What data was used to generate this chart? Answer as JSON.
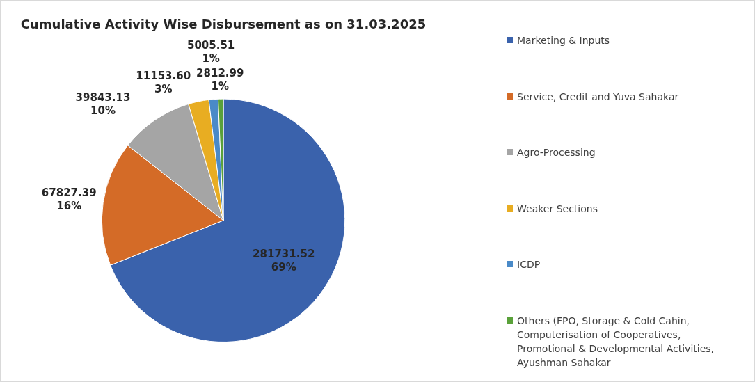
{
  "chart_data": {
    "type": "pie",
    "title": "Cumulative Activity Wise Disbursement as on 31.03.2025",
    "categories": [
      "Marketing & Inputs",
      "Service, Credit and Yuva Sahakar",
      "Agro-Processing",
      "Weaker Sections",
      "ICDP",
      "Others (FPO, Storage & Cold Cahin, Computerisation of Cooperatives, Promotional & Developmental Activities, Ayushman Sahakar"
    ],
    "values": [
      281731.52,
      67827.39,
      39843.13,
      11153.6,
      5005.51,
      2812.99
    ],
    "colors": [
      "#3a62ac",
      "#d46b27",
      "#a5a5a5",
      "#e8ad22",
      "#4a8ac8",
      "#5aa13a"
    ],
    "value_labels": [
      "281731.52\n69%",
      "67827.39\n16%",
      "39843.13\n10%",
      "11153.60\n3%",
      "5005.51\n1%",
      "2812.99\n1%"
    ],
    "legend": "right"
  }
}
